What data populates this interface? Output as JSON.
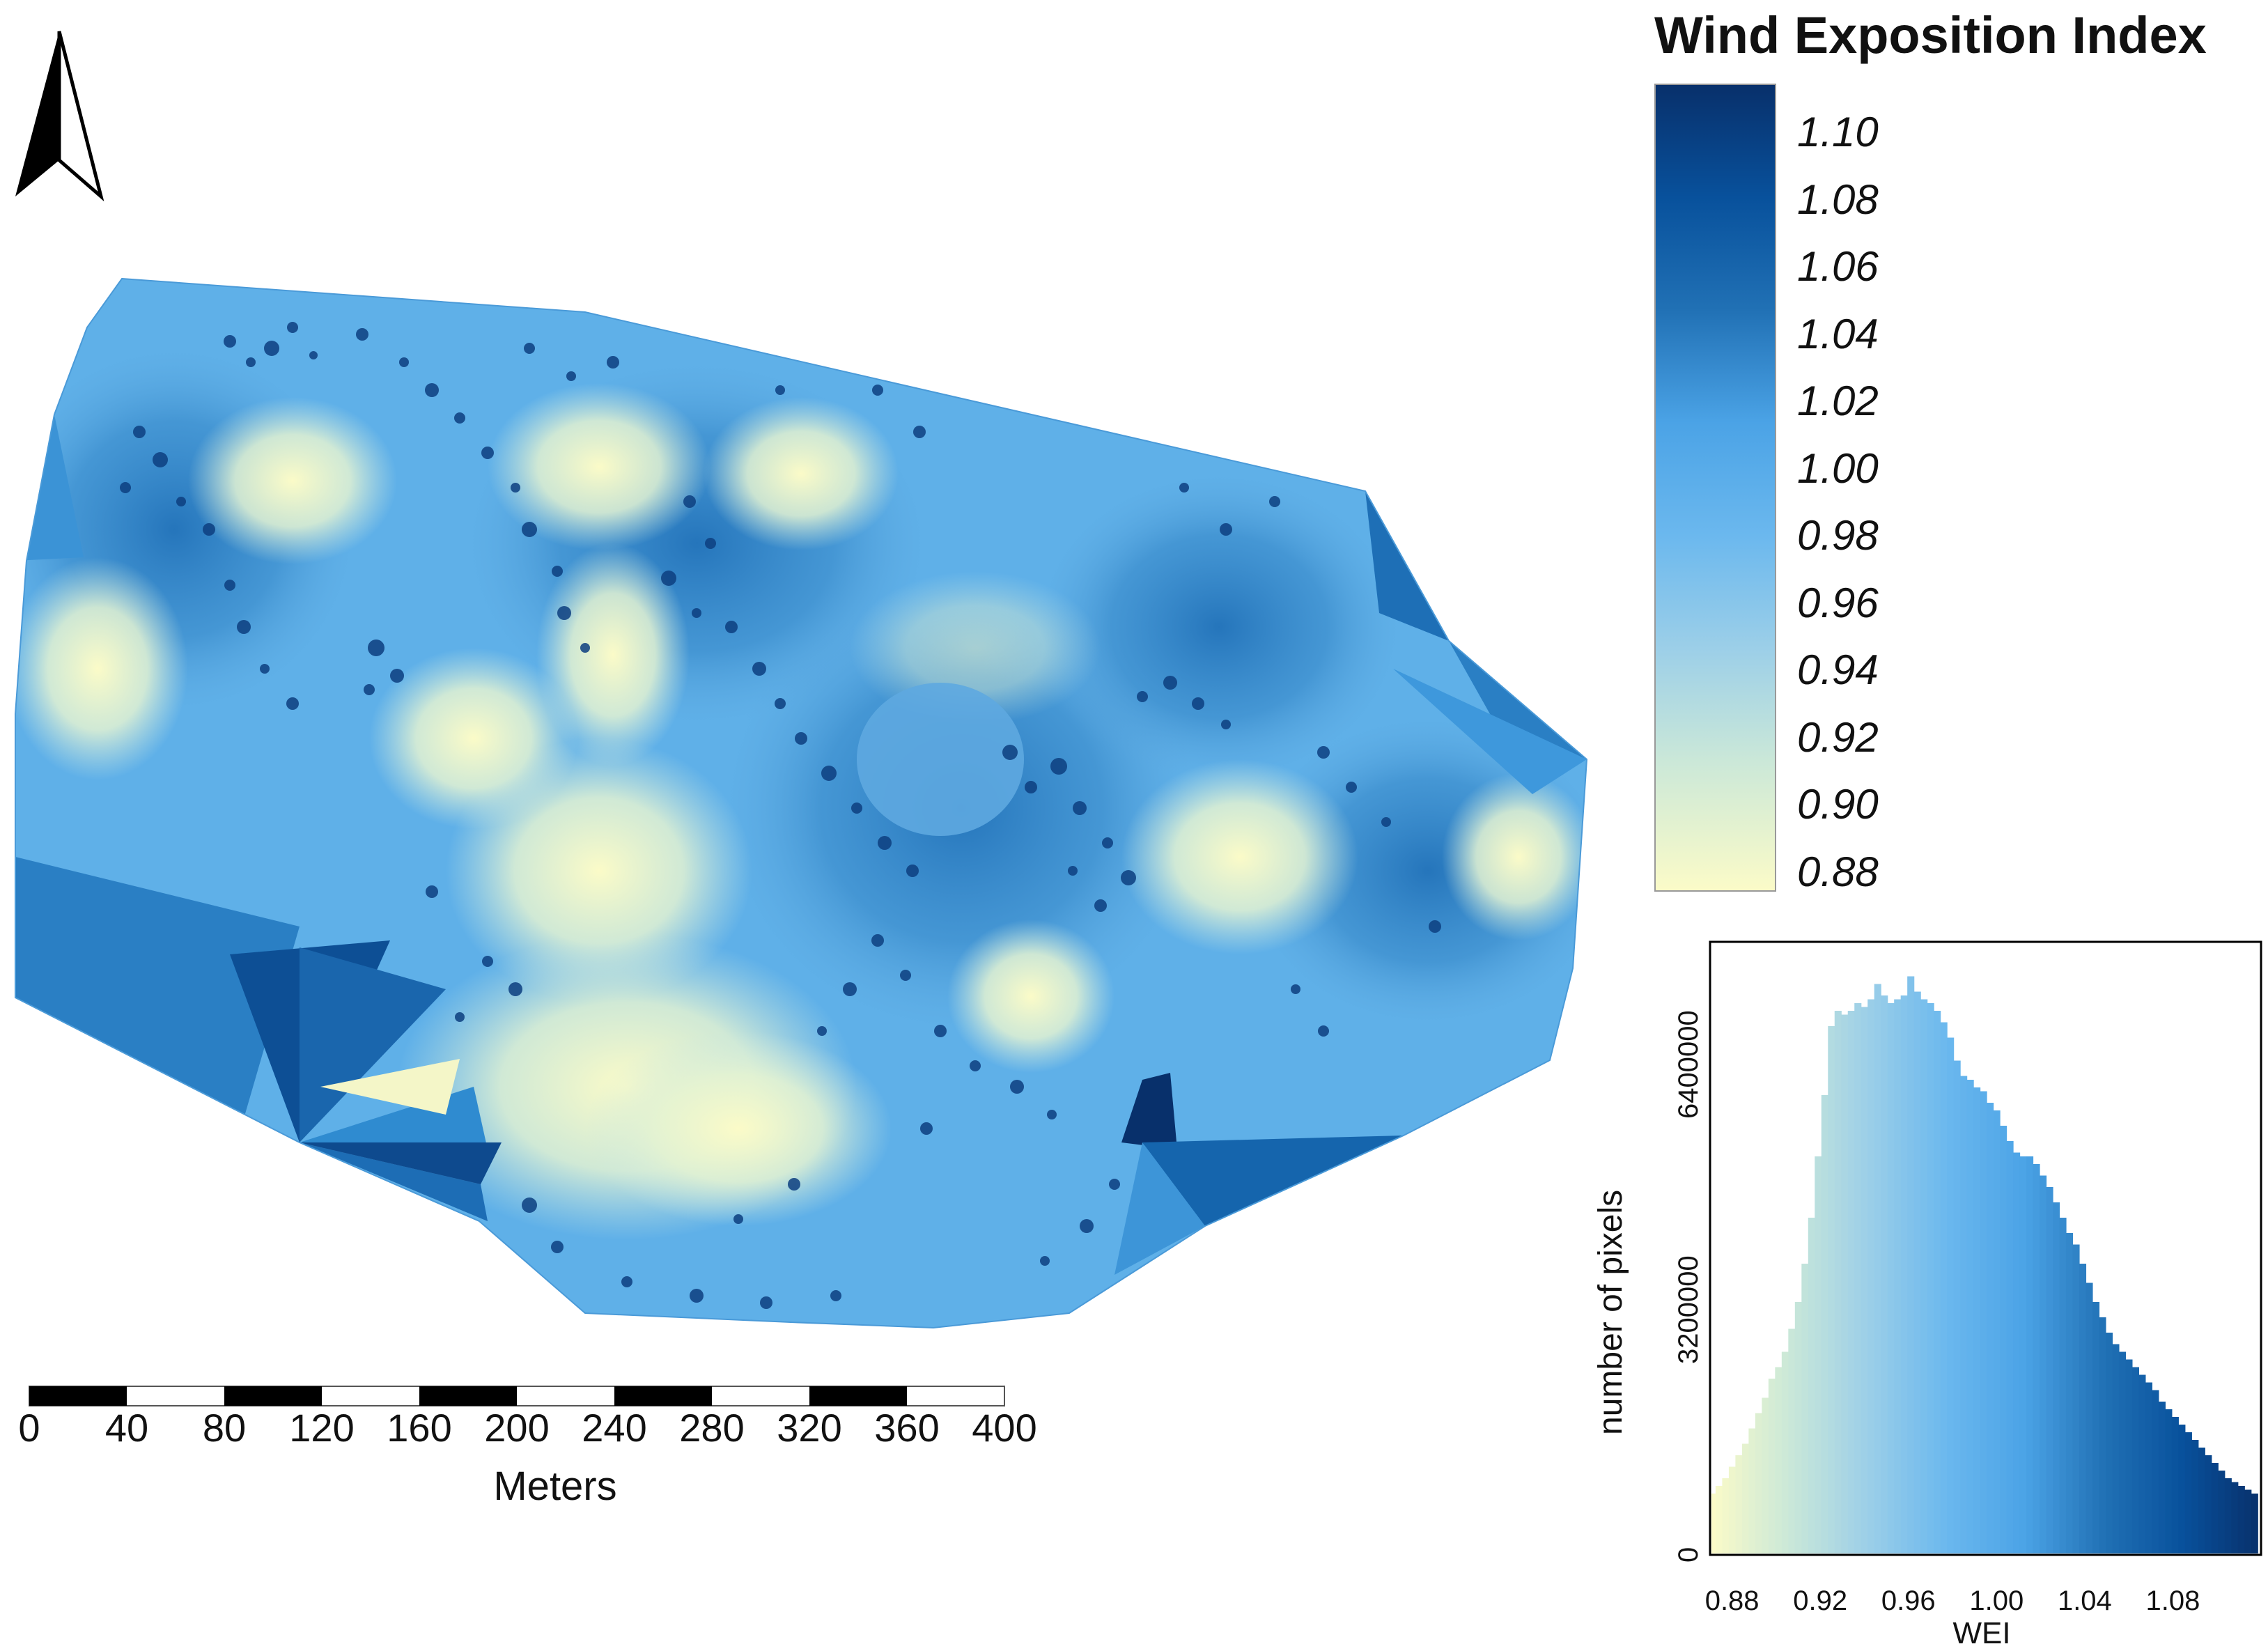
{
  "map": {
    "title": "Wind Exposition Index",
    "north_arrow_icon": "north-arrow-icon",
    "legend": {
      "labels": [
        "1.10",
        "1.08",
        "1.06",
        "1.04",
        "1.02",
        "1.00",
        "0.98",
        "0.96",
        "0.94",
        "0.92",
        "0.90",
        "0.88"
      ],
      "colors": [
        "#08306b",
        "#08519c",
        "#2171b5",
        "#4ba3e6",
        "#6bb8ee",
        "#9ccfe8",
        "#cbe8d8",
        "#fbfbc8"
      ]
    },
    "scalebar": {
      "labels": [
        "0",
        "40",
        "80",
        "120",
        "160",
        "200",
        "240",
        "280",
        "320",
        "360",
        "400"
      ],
      "unit": "Meters"
    }
  },
  "chart_data": {
    "type": "bar",
    "title": "",
    "xlabel": "WEI",
    "ylabel": "number of pixels",
    "xlim": [
      0.87,
      1.12
    ],
    "ylim": [
      0,
      8000000
    ],
    "x_ticks": [
      "0.88",
      "0.92",
      "0.96",
      "1.00",
      "1.04",
      "1.08"
    ],
    "y_ticks": [
      "0",
      "3200000",
      "6400000"
    ],
    "bin_width": 0.003,
    "x": [
      0.871,
      0.874,
      0.877,
      0.88,
      0.883,
      0.886,
      0.889,
      0.892,
      0.895,
      0.898,
      0.901,
      0.904,
      0.907,
      0.91,
      0.913,
      0.916,
      0.919,
      0.922,
      0.925,
      0.928,
      0.931,
      0.934,
      0.937,
      0.94,
      0.943,
      0.946,
      0.949,
      0.952,
      0.955,
      0.958,
      0.961,
      0.964,
      0.967,
      0.97,
      0.973,
      0.976,
      0.979,
      0.982,
      0.985,
      0.988,
      0.991,
      0.994,
      0.997,
      1.0,
      1.003,
      1.006,
      1.009,
      1.012,
      1.015,
      1.018,
      1.021,
      1.024,
      1.027,
      1.03,
      1.033,
      1.036,
      1.039,
      1.042,
      1.045,
      1.048,
      1.051,
      1.054,
      1.057,
      1.06,
      1.063,
      1.066,
      1.069,
      1.072,
      1.075,
      1.078,
      1.081,
      1.084,
      1.087,
      1.09,
      1.093,
      1.096,
      1.099,
      1.102,
      1.105,
      1.108,
      1.111,
      1.114,
      1.117
    ],
    "values": [
      800000,
      900000,
      1000000,
      1150000,
      1300000,
      1450000,
      1650000,
      1850000,
      2050000,
      2300000,
      2450000,
      2650000,
      2950000,
      3300000,
      3800000,
      4400000,
      5200000,
      6000000,
      6900000,
      7100000,
      7050000,
      7100000,
      7200000,
      7150000,
      7250000,
      7450000,
      7300000,
      7200000,
      7250000,
      7300000,
      7550000,
      7350000,
      7250000,
      7200000,
      7100000,
      6950000,
      6750000,
      6450000,
      6250000,
      6200000,
      6100000,
      6050000,
      5900000,
      5800000,
      5600000,
      5400000,
      5250000,
      5200000,
      5200000,
      5100000,
      4950000,
      4800000,
      4600000,
      4400000,
      4200000,
      4050000,
      3800000,
      3550000,
      3300000,
      3100000,
      2900000,
      2750000,
      2650000,
      2550000,
      2450000,
      2350000,
      2250000,
      2150000,
      2000000,
      1900000,
      1800000,
      1700000,
      1600000,
      1500000,
      1400000,
      1300000,
      1200000,
      1100000,
      1000000,
      950000,
      900000,
      850000,
      800000
    ]
  }
}
